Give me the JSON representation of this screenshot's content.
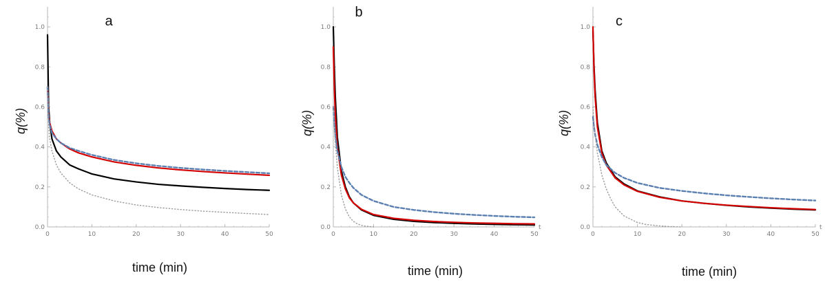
{
  "chart_data": [
    {
      "type": "line",
      "panel_label": "a",
      "xlabel": "time (min)",
      "ylabel": "q(%)",
      "xlim": [
        0,
        50
      ],
      "ylim": [
        0,
        1.1
      ],
      "x_ticks": [
        "0",
        "10",
        "20",
        "30",
        "40",
        "50"
      ],
      "y_ticks": [
        "0.0",
        "0.2",
        "0.4",
        "0.6",
        "0.8",
        "1.0"
      ],
      "grid": false,
      "series": [
        {
          "style": "solid",
          "color": "#000000",
          "x": [
            0,
            0.25,
            0.5,
            1,
            2,
            3,
            5,
            7,
            10,
            15,
            20,
            25,
            30,
            35,
            40,
            45,
            50
          ],
          "y": [
            0.96,
            0.6,
            0.52,
            0.44,
            0.38,
            0.35,
            0.31,
            0.29,
            0.265,
            0.24,
            0.225,
            0.213,
            0.205,
            0.198,
            0.192,
            0.187,
            0.183
          ]
        },
        {
          "style": "solid",
          "color": "#d40000",
          "x": [
            0,
            0.25,
            0.5,
            1,
            2,
            3,
            5,
            7,
            10,
            15,
            20,
            25,
            30,
            35,
            40,
            45,
            50
          ],
          "y": [
            0.7,
            0.56,
            0.52,
            0.48,
            0.44,
            0.42,
            0.39,
            0.37,
            0.35,
            0.325,
            0.308,
            0.295,
            0.285,
            0.277,
            0.27,
            0.264,
            0.258
          ]
        },
        {
          "style": "dashed",
          "color": "#5b7fb0",
          "x": [
            0,
            0.25,
            0.5,
            1,
            2,
            3,
            5,
            7,
            10,
            15,
            20,
            25,
            30,
            35,
            40,
            45,
            50
          ],
          "y": [
            0.7,
            0.55,
            0.51,
            0.47,
            0.44,
            0.42,
            0.395,
            0.38,
            0.36,
            0.335,
            0.318,
            0.305,
            0.295,
            0.287,
            0.28,
            0.274,
            0.268
          ]
        },
        {
          "style": "dotted",
          "color": "#9a9a9a",
          "x": [
            0,
            0.25,
            0.5,
            1,
            2,
            3,
            5,
            7,
            10,
            15,
            20,
            25,
            30,
            35,
            40,
            45,
            50
          ],
          "y": [
            0.7,
            0.5,
            0.44,
            0.38,
            0.31,
            0.27,
            0.22,
            0.19,
            0.16,
            0.13,
            0.11,
            0.097,
            0.087,
            0.079,
            0.073,
            0.067,
            0.062
          ]
        }
      ]
    },
    {
      "type": "line",
      "panel_label": "b",
      "xlabel": "time (min)",
      "ylabel": "q(%)",
      "x_axis_end_label": "t",
      "xlim": [
        0,
        50
      ],
      "ylim": [
        0,
        1.1
      ],
      "x_ticks": [
        "0",
        "10",
        "20",
        "30",
        "40",
        "50"
      ],
      "y_ticks": [
        "0.0",
        "0.2",
        "0.4",
        "0.6",
        "0.8",
        "1.0"
      ],
      "grid": false,
      "series": [
        {
          "style": "solid",
          "color": "#000000",
          "x": [
            0,
            0.25,
            0.5,
            1,
            2,
            3,
            4,
            5,
            7,
            10,
            15,
            20,
            25,
            30,
            35,
            40,
            45,
            50
          ],
          "y": [
            1.0,
            0.8,
            0.65,
            0.45,
            0.28,
            0.2,
            0.15,
            0.12,
            0.085,
            0.058,
            0.038,
            0.028,
            0.022,
            0.018,
            0.015,
            0.013,
            0.011,
            0.01
          ]
        },
        {
          "style": "solid",
          "color": "#d40000",
          "x": [
            0,
            0.25,
            0.5,
            1,
            2,
            3,
            4,
            5,
            7,
            10,
            15,
            20,
            25,
            30,
            35,
            40,
            45,
            50
          ],
          "y": [
            0.9,
            0.7,
            0.56,
            0.4,
            0.26,
            0.19,
            0.145,
            0.12,
            0.088,
            0.062,
            0.043,
            0.033,
            0.027,
            0.023,
            0.02,
            0.018,
            0.016,
            0.015
          ]
        },
        {
          "style": "dashed",
          "color": "#5b7fb0",
          "x": [
            0,
            0.25,
            0.5,
            1,
            2,
            3,
            4,
            5,
            7,
            10,
            15,
            20,
            25,
            30,
            35,
            40,
            45,
            50
          ],
          "y": [
            0.6,
            0.52,
            0.46,
            0.38,
            0.3,
            0.25,
            0.22,
            0.195,
            0.16,
            0.13,
            0.1,
            0.085,
            0.074,
            0.066,
            0.06,
            0.055,
            0.051,
            0.048
          ]
        },
        {
          "style": "dotted",
          "color": "#9a9a9a",
          "x": [
            0,
            0.25,
            0.5,
            1,
            2,
            3,
            4,
            5,
            6,
            7,
            8,
            9,
            10
          ],
          "y": [
            0.6,
            0.5,
            0.42,
            0.3,
            0.16,
            0.09,
            0.05,
            0.028,
            0.015,
            0.008,
            0.004,
            0.002,
            0.0
          ]
        }
      ]
    },
    {
      "type": "line",
      "panel_label": "c",
      "xlabel": "time (min)",
      "ylabel": "q(%)",
      "x_axis_end_label": "t",
      "xlim": [
        0,
        50
      ],
      "ylim": [
        0,
        1.1
      ],
      "x_ticks": [
        "0",
        "10",
        "20",
        "30",
        "40",
        "50"
      ],
      "y_ticks": [
        "0.0",
        "0.2",
        "0.4",
        "0.6",
        "0.8",
        "1.0"
      ],
      "grid": false,
      "series": [
        {
          "style": "solid",
          "color": "#000000",
          "x": [
            0,
            0.25,
            0.5,
            1,
            2,
            3,
            5,
            7,
            10,
            15,
            20,
            25,
            30,
            35,
            40,
            45,
            50
          ],
          "y": [
            0.98,
            0.8,
            0.68,
            0.52,
            0.38,
            0.32,
            0.25,
            0.215,
            0.18,
            0.15,
            0.13,
            0.118,
            0.108,
            0.1,
            0.094,
            0.089,
            0.085
          ]
        },
        {
          "style": "solid",
          "color": "#d40000",
          "x": [
            0,
            0.25,
            0.5,
            1,
            2,
            3,
            5,
            7,
            10,
            15,
            20,
            25,
            30,
            35,
            40,
            45,
            50
          ],
          "y": [
            1.0,
            0.78,
            0.65,
            0.5,
            0.37,
            0.31,
            0.245,
            0.21,
            0.178,
            0.148,
            0.13,
            0.118,
            0.109,
            0.102,
            0.096,
            0.091,
            0.087
          ]
        },
        {
          "style": "dashed",
          "color": "#5b7fb0",
          "x": [
            0,
            0.25,
            0.5,
            1,
            2,
            3,
            5,
            7,
            10,
            15,
            20,
            25,
            30,
            35,
            40,
            45,
            50
          ],
          "y": [
            0.55,
            0.5,
            0.46,
            0.41,
            0.35,
            0.31,
            0.27,
            0.245,
            0.22,
            0.195,
            0.18,
            0.168,
            0.158,
            0.15,
            0.143,
            0.137,
            0.132
          ]
        },
        {
          "style": "dotted",
          "color": "#9a9a9a",
          "x": [
            0,
            0.25,
            0.5,
            1,
            2,
            3,
            4,
            5,
            7,
            10,
            12,
            15,
            18,
            20
          ],
          "y": [
            0.6,
            0.52,
            0.46,
            0.37,
            0.26,
            0.19,
            0.14,
            0.1,
            0.055,
            0.022,
            0.012,
            0.005,
            0.001,
            0.0
          ]
        }
      ]
    }
  ]
}
